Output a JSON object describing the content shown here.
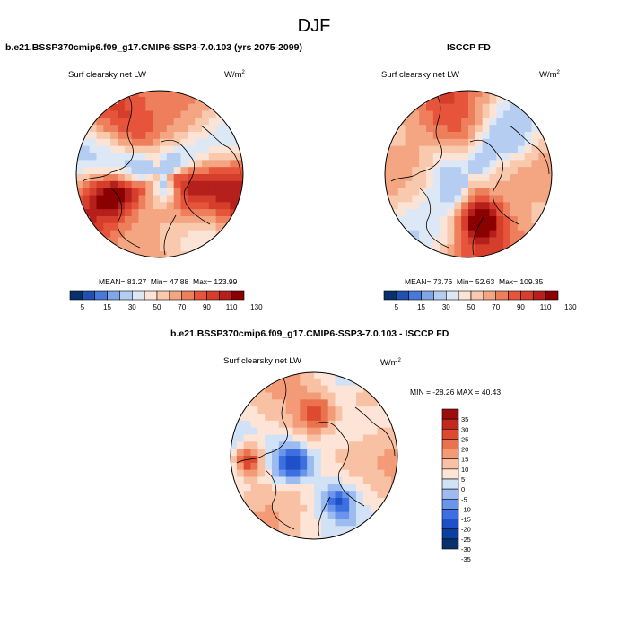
{
  "figure_title": "DJF",
  "colors": {
    "seq_scale": [
      "#08306b",
      "#2050b0",
      "#4a78d8",
      "#7fa7e8",
      "#b5cdf0",
      "#dde8f7",
      "#fbe4d6",
      "#f9c9ad",
      "#f4a582",
      "#ee7f5c",
      "#e6553b",
      "#d53e2a",
      "#b51f1c",
      "#8b0000"
    ],
    "div_scale": [
      "#08306b",
      "#0d3fa0",
      "#2050c8",
      "#3c6fe0",
      "#6a95ea",
      "#9cbcf0",
      "#d1e2f7",
      "#fde4d6",
      "#f9c1a3",
      "#f39b77",
      "#ea724f",
      "#dd4a30",
      "#c3281e",
      "#9b0d0d"
    ]
  },
  "chart_data": [
    {
      "type": "heatmap",
      "projection": "north-polar-stereographic",
      "title": "b.e21.BSSP370cmip6.f09_g17.CMIP6-SSP3-7.0.103 (yrs 2075-2099)",
      "variable": "Surf clearsky net LW",
      "units": "W/m",
      "units_sup": "2",
      "mean_label": "MEAN=",
      "mean": "81.27",
      "min_label": "Min=",
      "min": "47.88",
      "max_label": "Max=",
      "max": "123.99",
      "colorbar_levels": [
        5,
        10,
        15,
        20,
        30,
        40,
        50,
        60,
        70,
        80,
        90,
        100,
        110,
        120,
        130
      ],
      "colorbar_labels": [
        "5",
        "15",
        "30",
        "50",
        "70",
        "90",
        "110",
        "130"
      ],
      "field_pattern": "model"
    },
    {
      "type": "heatmap",
      "projection": "north-polar-stereographic",
      "title": "ISCCP FD",
      "variable": "Surf clearsky net LW",
      "units": "W/m",
      "units_sup": "2",
      "mean_label": "MEAN=",
      "mean": "73.76",
      "min_label": "Min=",
      "min": "52.63",
      "max_label": "Max=",
      "max": "109.35",
      "colorbar_levels": [
        5,
        10,
        15,
        20,
        30,
        40,
        50,
        60,
        70,
        80,
        90,
        100,
        110,
        120,
        130
      ],
      "colorbar_labels": [
        "5",
        "15",
        "30",
        "50",
        "70",
        "90",
        "110",
        "130"
      ],
      "field_pattern": "obs"
    },
    {
      "type": "heatmap",
      "projection": "north-polar-stereographic",
      "title": "b.e21.BSSP370cmip6.f09_g17.CMIP6-SSP3-7.0.103 - ISCCP FD",
      "variable": "Surf clearsky net LW",
      "units": "W/m",
      "units_sup": "2",
      "minmax_text": "MIN = -28.26  MAX =  40.43",
      "colorbar_levels": [
        35,
        30,
        25,
        20,
        15,
        10,
        5,
        0,
        -5,
        -10,
        -15,
        -20,
        -25,
        -30,
        -35
      ],
      "colorbar_labels": [
        "35",
        "30",
        "25",
        "20",
        "15",
        "10",
        "5",
        "0",
        "-5",
        "-10",
        "-15",
        "-20",
        "-25",
        "-30",
        "-35"
      ],
      "field_pattern": "diff"
    }
  ]
}
